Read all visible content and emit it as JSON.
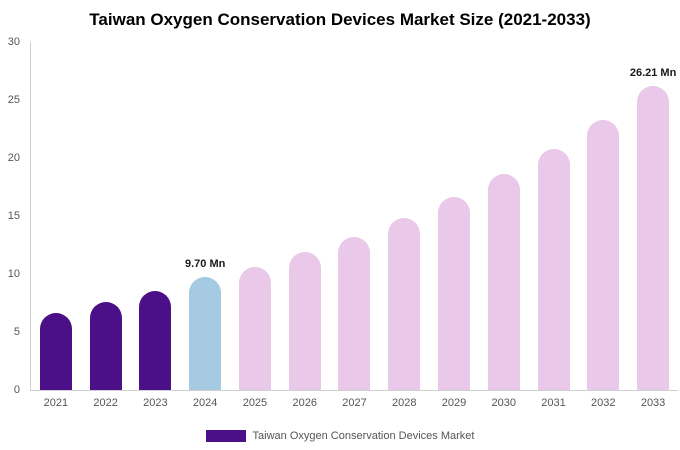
{
  "chart_data": {
    "type": "bar",
    "title": "Taiwan Oxygen Conservation Devices Market Size (2021-2033)",
    "categories": [
      "2021",
      "2022",
      "2023",
      "2024",
      "2025",
      "2026",
      "2027",
      "2028",
      "2029",
      "2030",
      "2031",
      "2032",
      "2033"
    ],
    "values": [
      6.6,
      7.6,
      8.5,
      9.7,
      10.6,
      11.9,
      13.2,
      14.8,
      16.6,
      18.6,
      20.8,
      23.3,
      26.21
    ],
    "unit": "Mn",
    "ylim": [
      0,
      30
    ],
    "yticks": [
      0,
      5,
      10,
      15,
      20,
      25,
      30
    ],
    "grid": false,
    "bar_colors": [
      "#4b1087",
      "#4b1087",
      "#4b1087",
      "#a5cae2",
      "#e9c8e9",
      "#e9c8e9",
      "#e9c8e9",
      "#e9c8e9",
      "#e9c8e9",
      "#e9c8e9",
      "#e9c8e9",
      "#e9c8e9",
      "#e9c8e9"
    ],
    "annotations": [
      {
        "index": 3,
        "text": "9.70 Mn"
      },
      {
        "index": 12,
        "text": "26.21 Mn"
      }
    ],
    "legend_position": "bottom",
    "legend": [
      {
        "label": "Taiwan Oxygen Conservation Devices Market",
        "color": "#4b1087"
      }
    ]
  }
}
